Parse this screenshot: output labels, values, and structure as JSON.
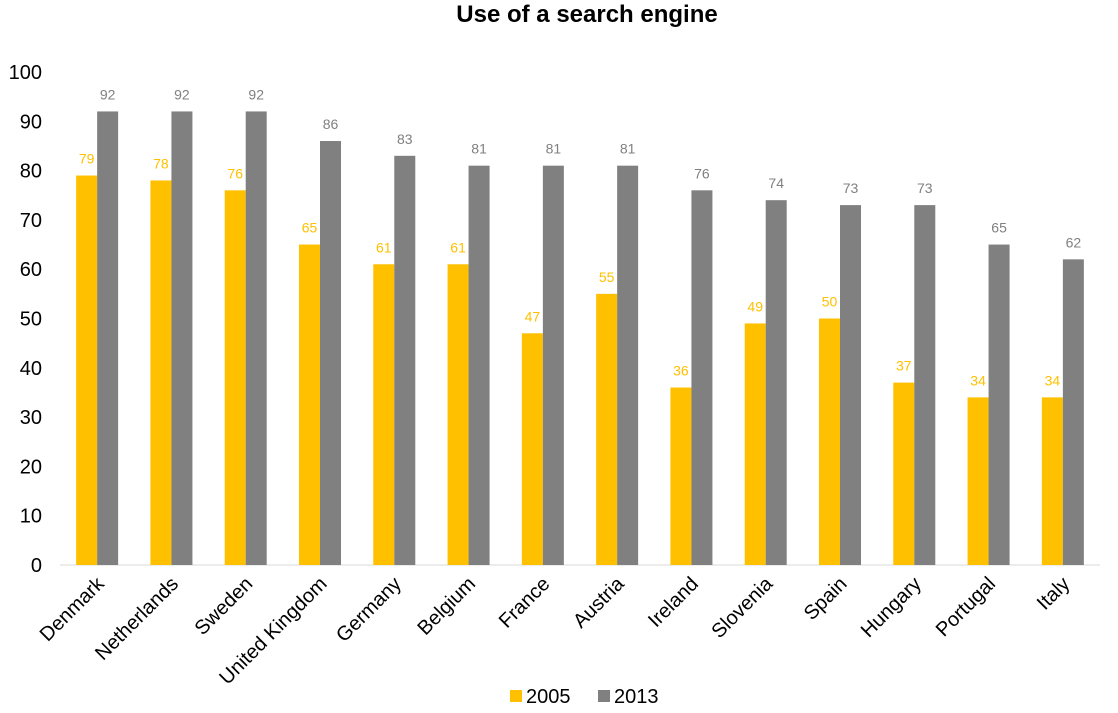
{
  "chart_data": {
    "type": "bar",
    "title": "Use of a search engine",
    "xlabel": "",
    "ylabel": "",
    "ylim": [
      0,
      100
    ],
    "yticks": [
      0,
      10,
      20,
      30,
      40,
      50,
      60,
      70,
      80,
      90,
      100
    ],
    "grid": false,
    "legend_position": "bottom",
    "categories": [
      "Denmark",
      "Netherlands",
      "Sweden",
      "United Kingdom",
      "Germany",
      "Belgium",
      "France",
      "Austria",
      "Ireland",
      "Slovenia",
      "Spain",
      "Hungary",
      "Portugal",
      "Italy"
    ],
    "series": [
      {
        "name": "2005",
        "color": "#FFC000",
        "values": [
          79,
          78,
          76,
          65,
          61,
          61,
          47,
          55,
          36,
          49,
          50,
          37,
          34,
          34
        ]
      },
      {
        "name": "2013",
        "color": "#808080",
        "values": [
          92,
          92,
          92,
          86,
          83,
          81,
          81,
          81,
          76,
          74,
          73,
          73,
          65,
          62
        ]
      }
    ],
    "data_labels": true
  }
}
